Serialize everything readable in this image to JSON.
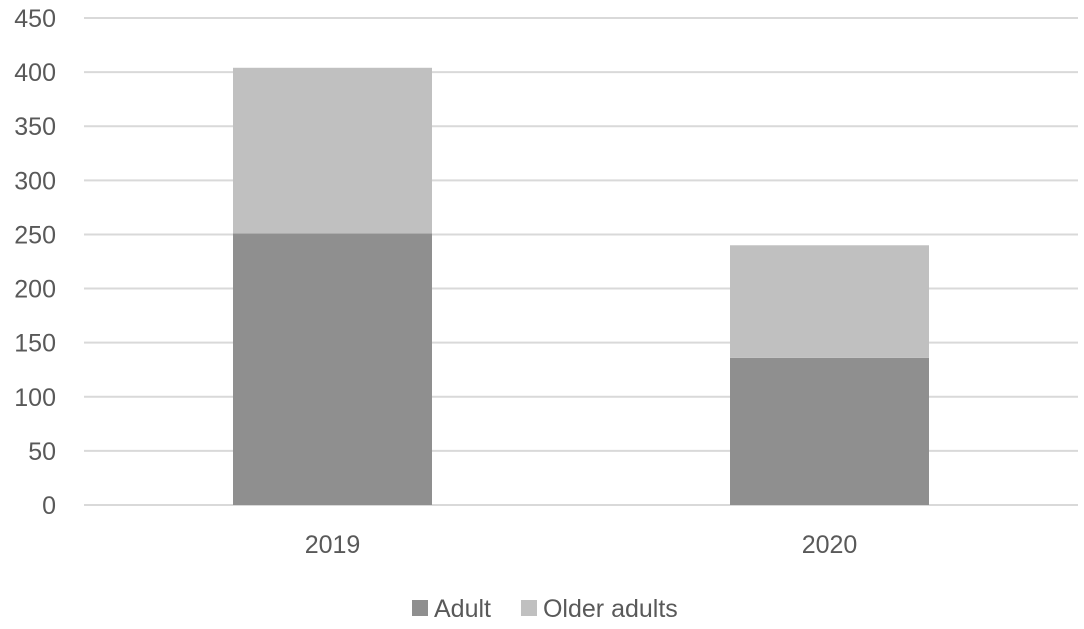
{
  "chart_data": {
    "type": "bar",
    "stacked": true,
    "title": "",
    "xlabel": "",
    "ylabel": "",
    "categories": [
      "2019",
      "2020"
    ],
    "series": [
      {
        "name": "Adult",
        "values": [
          251,
          136
        ],
        "color": "#8f8f8f"
      },
      {
        "name": "Older adults",
        "values": [
          153,
          104
        ],
        "color": "#c0c0c0"
      }
    ],
    "ylim": [
      0,
      450
    ],
    "yticks": [
      "0",
      "50",
      "100",
      "150",
      "200",
      "250",
      "300",
      "350",
      "400",
      "450"
    ],
    "grid": true,
    "legend_position": "bottom"
  }
}
